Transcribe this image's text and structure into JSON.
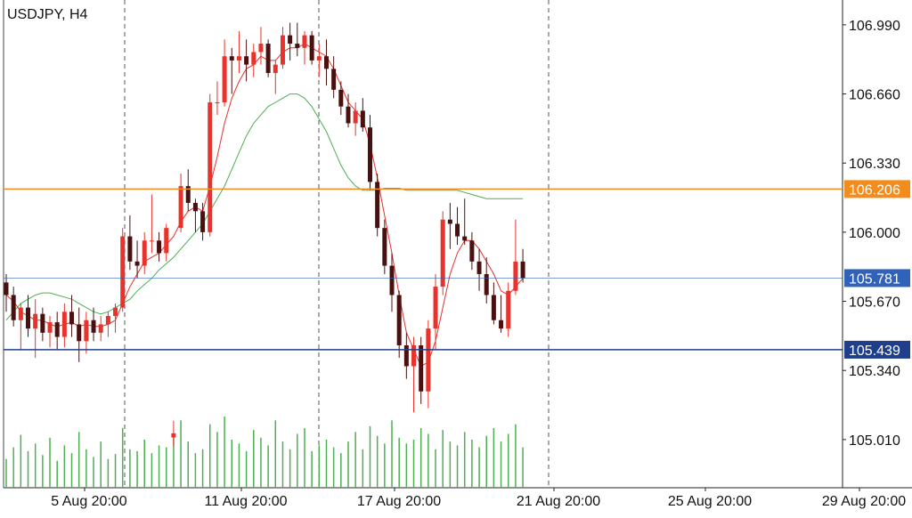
{
  "chart_data": {
    "type": "candlestick",
    "title": "USDJPY, H4",
    "x_tick_labels": [
      "5 Aug 20:00",
      "11 Aug 20:00",
      "17 Aug 20:00",
      "21 Aug 20:00",
      "25 Aug 20:00",
      "29 Aug 20:00"
    ],
    "y_tick_labels": [
      "106.990",
      "106.660",
      "106.330",
      "106.000",
      "105.670",
      "105.340",
      "105.010"
    ],
    "y_ticks": [
      106.99,
      106.66,
      106.33,
      106.0,
      105.67,
      105.34,
      105.01
    ],
    "ylim": [
      104.78,
      107.1
    ],
    "price_lines": [
      {
        "label": "106.206",
        "value": 106.206,
        "color": "#f28c1c",
        "style": "line-orange",
        "badge": true
      },
      {
        "label": "105.781",
        "value": 105.781,
        "color": "#2f62b8",
        "style": "line-light",
        "badge": true
      },
      {
        "label": "105.439",
        "value": 105.439,
        "color": "#1f3f8c",
        "style": "line-dark",
        "badge": true
      }
    ],
    "candle_colors": {
      "up": "#e8322b",
      "down": "#4a1010"
    },
    "ma_fast_color": "#e8322b",
    "ma_slow_color": "#4caf50",
    "volume_color": "#4caf50",
    "grid": false,
    "candles": [
      [
        105.76,
        105.8,
        105.62,
        105.7
      ],
      [
        105.7,
        105.74,
        105.55,
        105.58
      ],
      [
        105.58,
        105.66,
        105.44,
        105.64
      ],
      [
        105.64,
        105.7,
        105.5,
        105.54
      ],
      [
        105.54,
        105.68,
        105.4,
        105.61
      ],
      [
        105.61,
        105.64,
        105.48,
        105.52
      ],
      [
        105.52,
        105.6,
        105.45,
        105.57
      ],
      [
        105.57,
        105.62,
        105.44,
        105.5
      ],
      [
        105.5,
        105.66,
        105.45,
        105.62
      ],
      [
        105.62,
        105.7,
        105.5,
        105.56
      ],
      [
        105.56,
        105.64,
        105.38,
        105.48
      ],
      [
        105.48,
        105.62,
        105.42,
        105.58
      ],
      [
        105.58,
        105.64,
        105.48,
        105.52
      ],
      [
        105.52,
        105.6,
        105.48,
        105.56
      ],
      [
        105.56,
        105.62,
        105.5,
        105.6
      ],
      [
        105.6,
        105.66,
        105.52,
        105.64
      ],
      [
        105.64,
        106.02,
        105.62,
        105.98
      ],
      [
        105.98,
        106.08,
        105.82,
        105.86
      ],
      [
        105.86,
        105.96,
        105.78,
        105.84
      ],
      [
        105.84,
        106.0,
        105.8,
        105.96
      ],
      [
        105.96,
        106.18,
        105.9,
        105.96
      ],
      [
        105.96,
        106.0,
        105.86,
        105.9
      ],
      [
        105.9,
        106.04,
        105.86,
        106.02
      ],
      [
        105.02,
        105.1,
        104.98,
        105.04
      ],
      [
        106.02,
        106.28,
        106.0,
        106.22
      ],
      [
        106.22,
        106.3,
        106.1,
        106.14
      ],
      [
        106.14,
        106.16,
        106.0,
        106.1
      ],
      [
        106.1,
        106.14,
        105.96,
        106.0
      ],
      [
        106.0,
        106.66,
        105.98,
        106.62
      ],
      [
        106.62,
        106.72,
        106.56,
        106.62
      ],
      [
        106.62,
        106.92,
        106.6,
        106.84
      ],
      [
        106.84,
        106.88,
        106.66,
        106.82
      ],
      [
        106.82,
        106.96,
        106.76,
        106.84
      ],
      [
        106.84,
        106.92,
        106.72,
        106.8
      ],
      [
        106.8,
        106.9,
        106.74,
        106.86
      ],
      [
        106.86,
        106.98,
        106.8,
        106.9
      ],
      [
        106.9,
        106.92,
        106.74,
        106.76
      ],
      [
        106.76,
        106.82,
        106.66,
        106.8
      ],
      [
        106.8,
        106.98,
        106.78,
        106.94
      ],
      [
        106.94,
        107.0,
        106.82,
        106.9
      ],
      [
        106.9,
        107.0,
        106.84,
        106.88
      ],
      [
        106.88,
        106.96,
        106.8,
        106.94
      ],
      [
        106.94,
        106.96,
        106.8,
        106.82
      ],
      [
        106.82,
        106.9,
        106.74,
        106.84
      ],
      [
        106.84,
        106.92,
        106.7,
        106.78
      ],
      [
        106.78,
        106.84,
        106.64,
        106.68
      ],
      [
        106.68,
        106.72,
        106.56,
        106.6
      ],
      [
        106.6,
        106.66,
        106.5,
        106.52
      ],
      [
        106.52,
        106.62,
        106.46,
        106.58
      ],
      [
        106.58,
        106.64,
        106.48,
        106.5
      ],
      [
        106.5,
        106.56,
        106.2,
        106.24
      ],
      [
        106.24,
        106.28,
        105.98,
        106.02
      ],
      [
        106.02,
        106.06,
        105.8,
        105.84
      ],
      [
        105.84,
        105.9,
        105.62,
        105.7
      ],
      [
        105.7,
        105.72,
        105.4,
        105.46
      ],
      [
        105.46,
        105.52,
        105.3,
        105.36
      ],
      [
        105.36,
        105.5,
        105.14,
        105.46
      ],
      [
        105.46,
        105.5,
        105.18,
        105.24
      ],
      [
        105.24,
        105.58,
        105.16,
        105.54
      ],
      [
        105.54,
        105.8,
        105.44,
        105.74
      ],
      [
        105.74,
        106.1,
        105.7,
        106.06
      ],
      [
        106.06,
        106.14,
        105.92,
        106.04
      ],
      [
        106.04,
        106.12,
        105.94,
        105.98
      ],
      [
        105.98,
        106.16,
        105.94,
        105.96
      ],
      [
        105.96,
        106.0,
        105.82,
        105.86
      ],
      [
        105.86,
        105.92,
        105.72,
        105.8
      ],
      [
        105.8,
        105.88,
        105.66,
        105.7
      ],
      [
        105.7,
        105.76,
        105.56,
        105.58
      ],
      [
        105.58,
        105.7,
        105.52,
        105.54
      ],
      [
        105.54,
        105.76,
        105.5,
        105.72
      ],
      [
        105.72,
        106.06,
        105.7,
        105.86
      ],
      [
        105.86,
        105.92,
        105.76,
        105.78
      ]
    ],
    "ma_fast": [
      105.7,
      105.67,
      105.62,
      105.6,
      105.58,
      105.58,
      105.56,
      105.55,
      105.56,
      105.57,
      105.55,
      105.56,
      105.55,
      105.55,
      105.56,
      105.58,
      105.66,
      105.74,
      105.8,
      105.86,
      105.88,
      105.9,
      105.94,
      105.98,
      106.05,
      106.1,
      106.12,
      106.1,
      106.22,
      106.36,
      106.52,
      106.64,
      106.72,
      106.78,
      106.8,
      106.84,
      106.82,
      106.82,
      106.86,
      106.88,
      106.88,
      106.9,
      106.88,
      106.86,
      106.84,
      106.78,
      106.7,
      106.62,
      106.58,
      106.54,
      106.42,
      106.26,
      106.08,
      105.9,
      105.7,
      105.52,
      105.44,
      105.36,
      105.38,
      105.48,
      105.64,
      105.8,
      105.9,
      105.96,
      105.96,
      105.92,
      105.86,
      105.8,
      105.72,
      105.7,
      105.74,
      105.78
    ],
    "ma_slow": [
      105.58,
      105.62,
      105.66,
      105.68,
      105.7,
      105.71,
      105.71,
      105.7,
      105.69,
      105.68,
      105.66,
      105.64,
      105.62,
      105.61,
      105.62,
      105.64,
      105.66,
      105.68,
      105.72,
      105.75,
      105.78,
      105.82,
      105.85,
      105.88,
      105.92,
      105.96,
      106.0,
      106.04,
      106.1,
      106.16,
      106.22,
      106.3,
      106.38,
      106.46,
      106.52,
      106.56,
      106.6,
      106.62,
      106.64,
      106.66,
      106.66,
      106.64,
      106.6,
      106.54,
      106.48,
      106.4,
      106.32,
      106.26,
      106.22,
      106.2,
      106.2,
      106.2,
      106.21,
      106.21,
      106.21,
      106.2,
      106.2,
      106.2,
      106.2,
      106.2,
      106.2,
      106.2,
      106.2,
      106.19,
      106.18,
      106.17,
      106.16,
      106.16,
      106.16,
      106.16,
      106.16,
      106.16
    ],
    "volumes": [
      30,
      42,
      55,
      38,
      46,
      34,
      52,
      28,
      44,
      36,
      58,
      40,
      32,
      48,
      30,
      35,
      62,
      40,
      38,
      50,
      36,
      44,
      42,
      55,
      70,
      48,
      36,
      40,
      66,
      58,
      74,
      50,
      46,
      38,
      60,
      52,
      44,
      70,
      48,
      40,
      56,
      62,
      38,
      44,
      50,
      42,
      36,
      48,
      58,
      40,
      64,
      54,
      46,
      70,
      52,
      46,
      50,
      62,
      56,
      40,
      60,
      48,
      44,
      58,
      50,
      42,
      54,
      62,
      48,
      56,
      66,
      42
    ]
  }
}
